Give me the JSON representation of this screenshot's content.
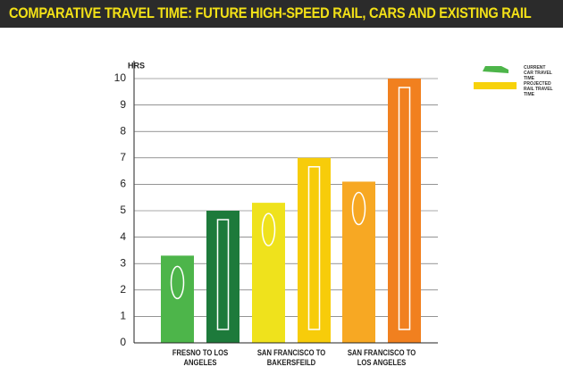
{
  "chart_data": {
    "type": "bar",
    "title": "COMPARATIVE TRAVEL TIME: FUTURE HIGH-SPEED RAIL, CARS AND EXISTING RAIL",
    "y_label": "HRS",
    "categories": [
      "FRESNO TO LOS ANGELES",
      "SAN FRANCISCO TO BAKERSFEILD",
      "SAN FRANCISCO TO LOS ANGELES"
    ],
    "series": [
      {
        "name": "CURRENT CAR TRAVEL TIME",
        "color": "#4db54a",
        "colors": [
          "#4db54a",
          "#efe21c",
          "#f7a823"
        ],
        "values": [
          3.3,
          5.3,
          6.1
        ]
      },
      {
        "name": "PROJECTED RAIL TRAVEL TIME",
        "color": "#f7d20a",
        "colors": [
          "#1d7a3b",
          "#f7cc0a",
          "#f1801f"
        ],
        "values": [
          5.0,
          7.0,
          10.0
        ]
      }
    ],
    "ylim": [
      0,
      10
    ],
    "yticks": [
      0,
      1,
      2,
      3,
      4,
      5,
      6,
      7,
      8,
      9,
      10
    ],
    "grid": true
  }
}
